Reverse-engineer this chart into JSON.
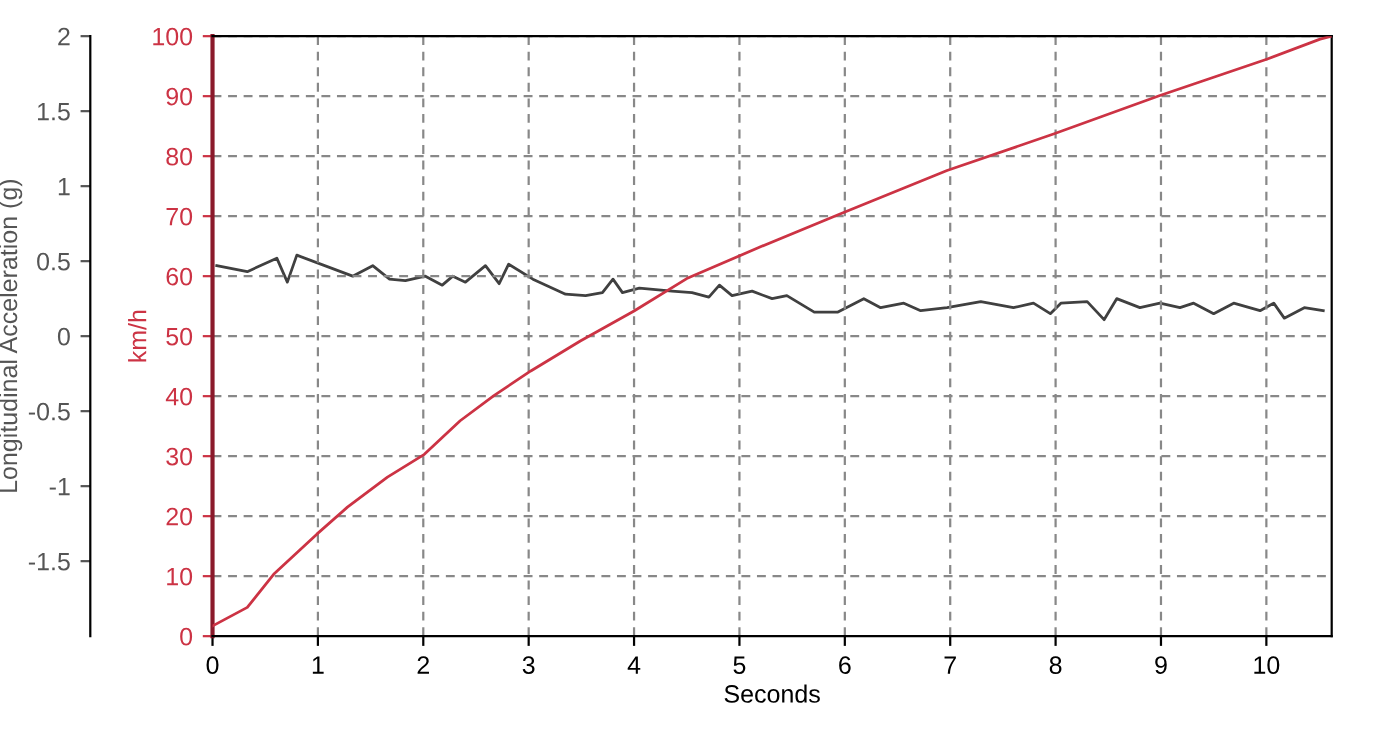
{
  "chart_data": {
    "type": "line",
    "xlabel": "Seconds",
    "ylabel": "km/h",
    "y2label": "Longitudinal Acceleration (g)",
    "xlim": [
      0,
      10.62
    ],
    "xticks": [
      0,
      1,
      2,
      3,
      4,
      5,
      6,
      7,
      8,
      9,
      10
    ],
    "ylim": [
      0,
      100
    ],
    "yticks": [
      0,
      10,
      20,
      30,
      40,
      50,
      60,
      70,
      80,
      90,
      100
    ],
    "y2lim": [
      -2,
      2
    ],
    "y2ticks": [
      -1.5,
      -1,
      -0.5,
      0,
      0.5,
      1,
      1.5,
      2
    ],
    "grid": true,
    "line_style": "solid",
    "series": [
      {
        "color": "#404040",
        "axis": "y2",
        "x": [
          0.04,
          0.33,
          0.61,
          0.71,
          0.8,
          1.33,
          1.52,
          1.68,
          1.83,
          2.02,
          2.18,
          2.28,
          2.4,
          2.59,
          2.72,
          2.81,
          3.04,
          3.35,
          3.54,
          3.7,
          3.8,
          3.89,
          4.05,
          4.36,
          4.55,
          4.71,
          4.81,
          4.93,
          5.12,
          5.31,
          5.45,
          5.71,
          5.93,
          6.18,
          6.34,
          6.56,
          6.72,
          6.97,
          7.29,
          7.6,
          7.79,
          7.95,
          8.05,
          8.3,
          8.46,
          8.58,
          8.8,
          8.99,
          9.18,
          9.31,
          9.5,
          9.69,
          9.94,
          10.07,
          10.17,
          10.36,
          10.54
        ],
        "values": [
          0.47,
          0.43,
          0.52,
          0.36,
          0.54,
          0.4,
          0.47,
          0.38,
          0.37,
          0.4,
          0.34,
          0.4,
          0.36,
          0.47,
          0.35,
          0.48,
          0.38,
          0.28,
          0.27,
          0.29,
          0.38,
          0.29,
          0.32,
          0.3,
          0.29,
          0.26,
          0.34,
          0.27,
          0.3,
          0.25,
          0.27,
          0.16,
          0.16,
          0.25,
          0.19,
          0.22,
          0.17,
          0.19,
          0.23,
          0.19,
          0.22,
          0.15,
          0.22,
          0.23,
          0.11,
          0.25,
          0.19,
          0.22,
          0.19,
          0.22,
          0.15,
          0.22,
          0.17,
          0.22,
          0.12,
          0.19,
          0.17
        ]
      },
      {
        "color": "#cc3344",
        "x": [
          0,
          0.33,
          0.58,
          0.99,
          1.28,
          1.66,
          2.01,
          2.35,
          2.67,
          3.02,
          3.49,
          4.0,
          4.5,
          5.2,
          5.96,
          6.97,
          7.98,
          8.99,
          10.01,
          10.51,
          10.62
        ],
        "values": [
          1.7,
          4.8,
          10.3,
          17,
          21.5,
          26.5,
          30.3,
          35.9,
          40.1,
          44.2,
          49.2,
          54.2,
          59.6,
          64.9,
          70.4,
          77.6,
          83.7,
          90.1,
          96.2,
          99.5,
          100
        ]
      }
    ]
  }
}
